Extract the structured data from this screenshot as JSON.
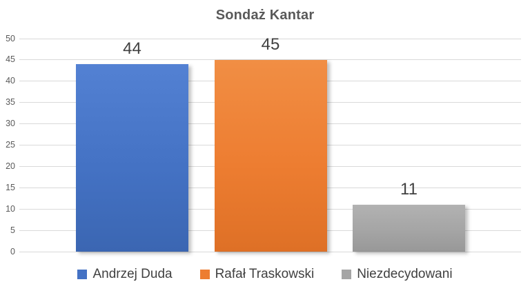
{
  "chart_data": {
    "type": "bar",
    "title": "Sondaż Kantar",
    "categories": [
      "Andrzej Duda",
      "Rafał Traskowski",
      "Niezdecydowani"
    ],
    "values": [
      44,
      45,
      11
    ],
    "data_labels": [
      "44",
      "45",
      "11"
    ],
    "series_colors": [
      {
        "base": "#4472C4",
        "light": "#5381D3",
        "dark": "#3B66B2"
      },
      {
        "base": "#ED7D31",
        "light": "#F18E44",
        "dark": "#DE7026"
      },
      {
        "base": "#A5A5A5",
        "light": "#B2B2B2",
        "dark": "#989898"
      }
    ],
    "xlabel": "",
    "ylabel": "",
    "ylim": [
      0,
      50
    ],
    "y_ticks": [
      50,
      45,
      40,
      35,
      30,
      25,
      20,
      15,
      10,
      5,
      0
    ],
    "grid": true,
    "legend_position": "bottom"
  },
  "colors": {
    "background": "#FFFFFF",
    "title_text": "#595959",
    "axis_text": "#595959",
    "data_label_text": "#404040",
    "legend_text": "#404040",
    "gridline": "#D9D9D9"
  }
}
